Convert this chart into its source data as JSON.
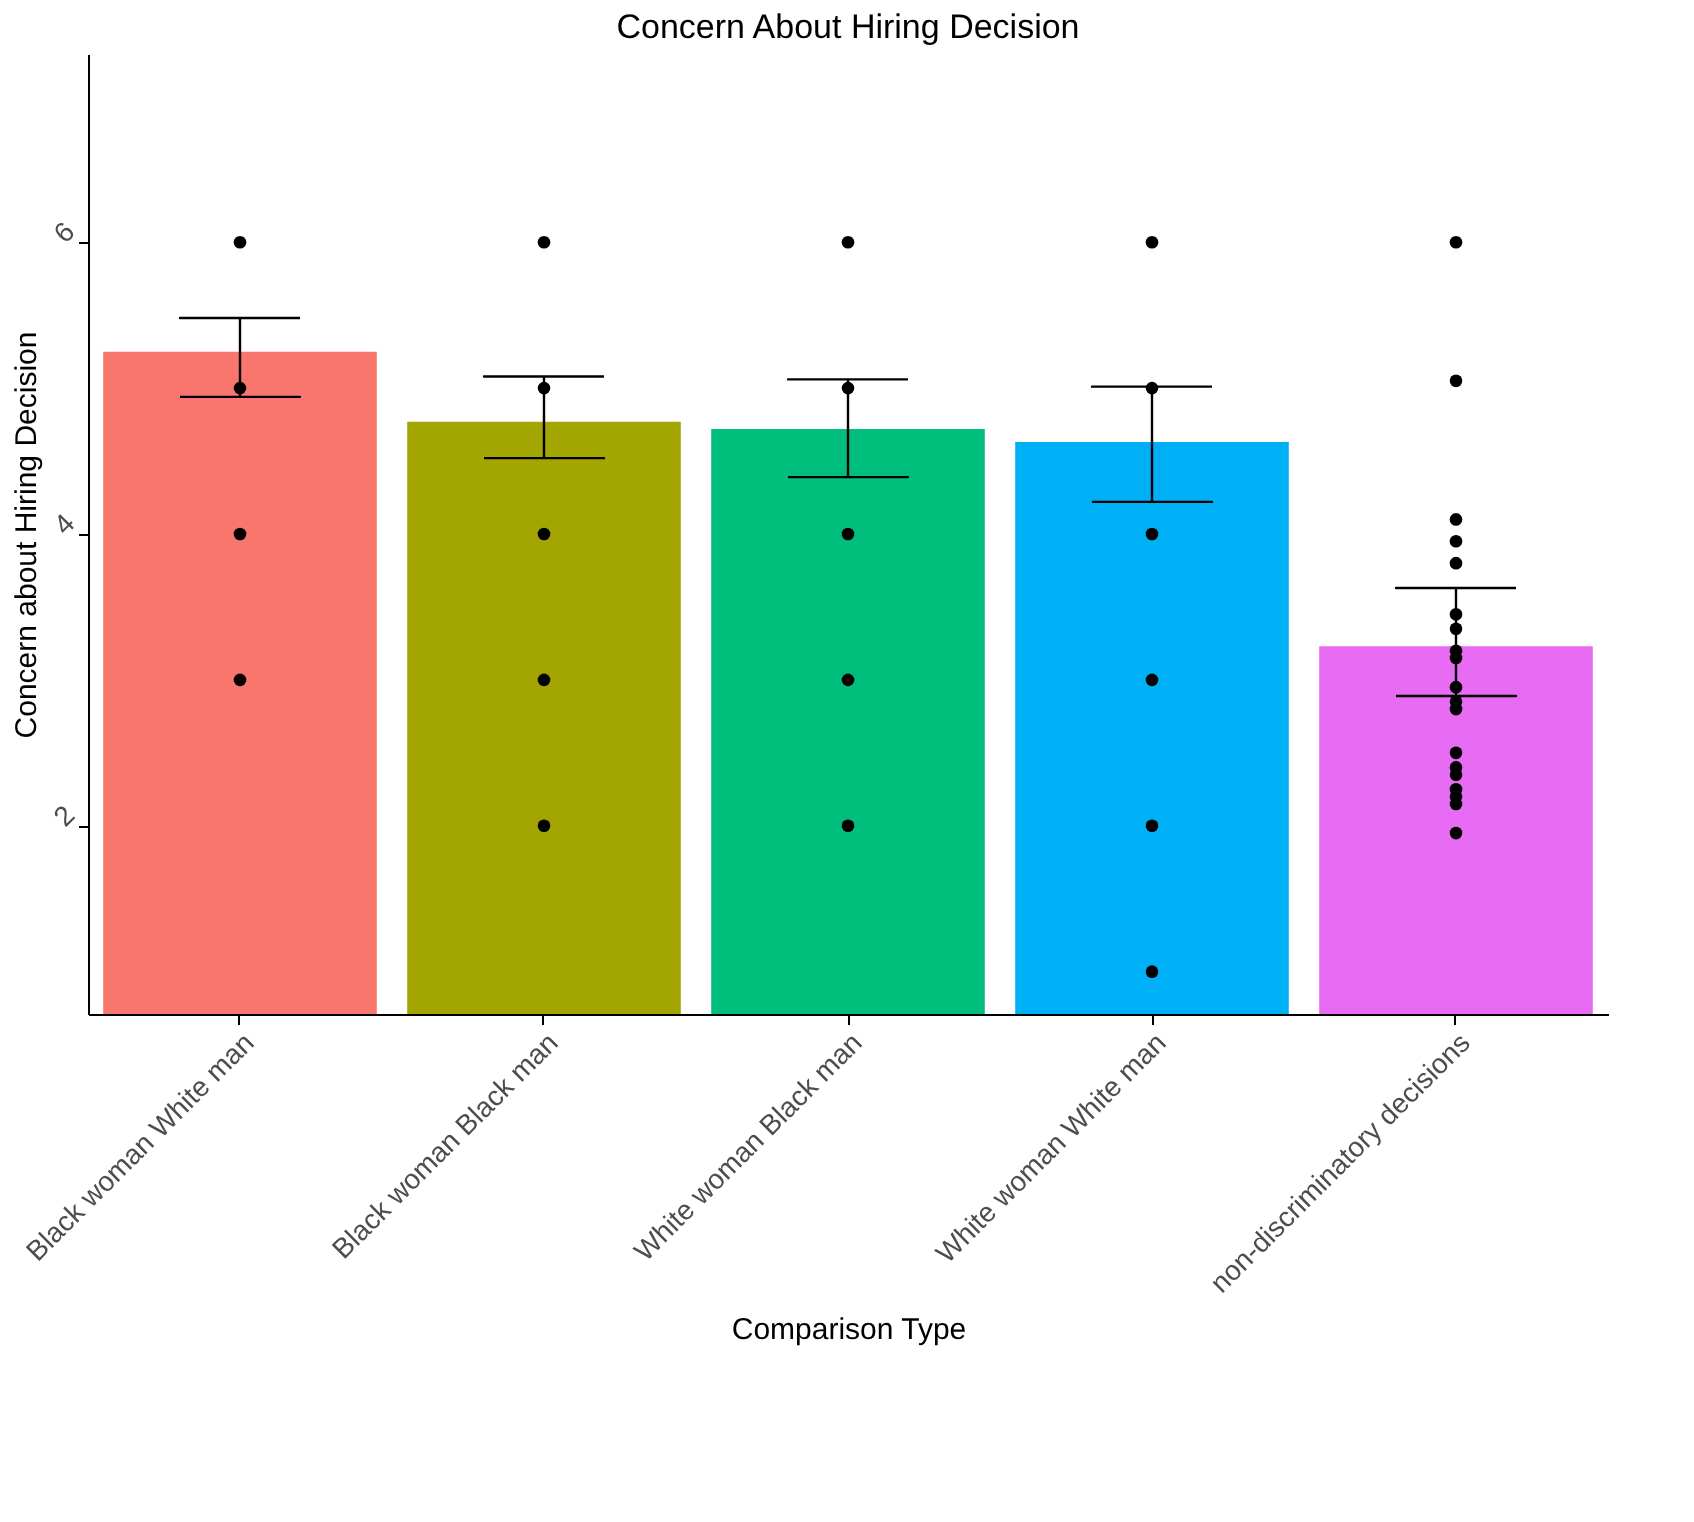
{
  "chart_data": {
    "type": "bar",
    "title": "Concern About Hiring Decision",
    "xlabel": "Comparison Type",
    "ylabel": "Concern about Hiring Decision",
    "categories": [
      "Black woman White man",
      "Black woman Black man",
      "White woman Black man",
      "White woman White man",
      "non-discriminatory decisions"
    ],
    "values": [
      5.25,
      4.77,
      4.72,
      4.63,
      3.23
    ],
    "colors": [
      "#f8766d",
      "#a3a500",
      "#00bf7d",
      "#00b0f6",
      "#e76bf3"
    ],
    "errors": [
      [
        4.94,
        5.48
      ],
      [
        4.52,
        5.08
      ],
      [
        4.39,
        5.06
      ],
      [
        4.22,
        5.01
      ],
      [
        2.89,
        3.63
      ]
    ],
    "ylim": [
      0.71,
      7.29
    ],
    "yticks": [
      2,
      4,
      6
    ],
    "grid": false,
    "legend": false,
    "series": [
      {
        "type": "scatter",
        "color": "#000000",
        "x": [
          "Black woman White man",
          "Black woman White man",
          "Black woman White man",
          "Black woman White man",
          "Black woman Black man",
          "Black woman Black man",
          "Black woman Black man",
          "Black woman Black man",
          "Black woman Black man",
          "White woman Black man",
          "White woman Black man",
          "White woman Black man",
          "White woman Black man",
          "White woman Black man",
          "White woman White man",
          "White woman White man",
          "White woman White man",
          "White woman White man",
          "White woman White man",
          "White woman White man",
          "non-discriminatory decisions",
          "non-discriminatory decisions",
          "non-discriminatory decisions",
          "non-discriminatory decisions",
          "non-discriminatory decisions",
          "non-discriminatory decisions",
          "non-discriminatory decisions",
          "non-discriminatory decisions",
          "non-discriminatory decisions",
          "non-discriminatory decisions",
          "non-discriminatory decisions",
          "non-discriminatory decisions",
          "non-discriminatory decisions",
          "non-discriminatory decisions",
          "non-discriminatory decisions",
          "non-discriminatory decisions",
          "non-discriminatory decisions",
          "non-discriminatory decisions",
          "non-discriminatory decisions"
        ],
        "values": [
          6,
          5,
          4,
          3,
          6,
          5,
          4,
          3,
          2,
          6,
          5,
          4,
          3,
          2,
          6,
          5,
          4,
          3,
          2,
          1,
          6,
          5.05,
          4.1,
          3.95,
          3.8,
          3.45,
          3.35,
          3.2,
          3.15,
          2.95,
          2.85,
          2.8,
          2.5,
          2.4,
          2.35,
          2.25,
          2.2,
          2.15,
          1.95
        ]
      }
    ]
  }
}
